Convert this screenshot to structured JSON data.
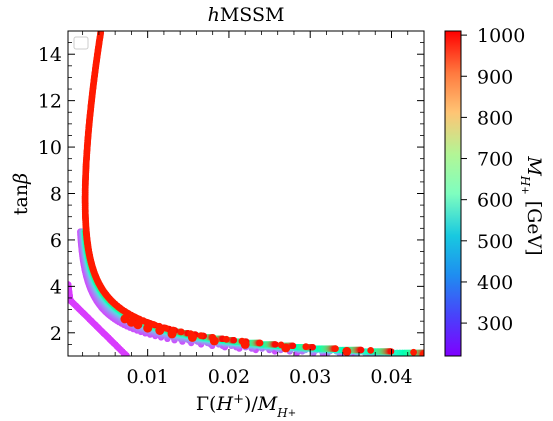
{
  "chart_data": {
    "type": "scatter",
    "title": "hMSSM",
    "title_italic_prefix": "h",
    "title_rest": "MSSM",
    "xlabel": "Γ(H⁺)/M_{H⁺}",
    "ylabel": "tanβ",
    "xlim": [
      0.0002,
      0.044
    ],
    "ylim": [
      1.0,
      15.0
    ],
    "x_ticks": [
      0.01,
      0.02,
      0.03,
      0.04
    ],
    "x_tick_labels": [
      "0.01",
      "0.02",
      "0.03",
      "0.04"
    ],
    "y_ticks": [
      2,
      4,
      6,
      8,
      10,
      12,
      14
    ],
    "y_tick_labels": [
      "2",
      "4",
      "6",
      "8",
      "10",
      "12",
      "14"
    ],
    "colorbar": {
      "label": "M_{H⁺} [GeV]",
      "range": [
        220,
        1010
      ],
      "ticks": [
        300,
        400,
        500,
        600,
        700,
        800,
        900,
        1000
      ],
      "tick_labels": [
        "300",
        "400",
        "500",
        "600",
        "700",
        "800",
        "900",
        "1000"
      ],
      "colormap": "rainbow"
    },
    "legend": {
      "placement": "upper-left",
      "entries": []
    },
    "grid": false,
    "model": {
      "description_hidden": "",
      "mass_min": 220,
      "mass_max": 1000,
      "tanb_min": 1.0,
      "tanb_max": 15.0
    },
    "series": [
      {
        "mass": 1000,
        "points": [
          [
            0.044,
            1.05
          ],
          [
            0.0345,
            1.2
          ],
          [
            0.027,
            1.35
          ],
          [
            0.022,
            1.5
          ],
          [
            0.0182,
            1.65
          ],
          [
            0.0155,
            1.8
          ],
          [
            0.013,
            1.95
          ],
          [
            0.0115,
            2.1
          ],
          [
            0.01,
            2.2
          ],
          [
            0.0088,
            2.35
          ],
          [
            0.008,
            2.45
          ],
          [
            0.0072,
            2.6
          ]
        ]
      }
    ]
  }
}
